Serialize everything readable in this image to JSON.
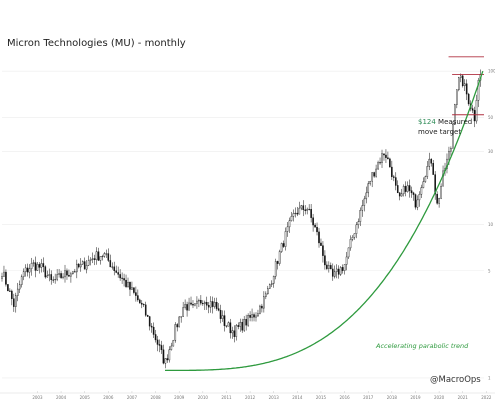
{
  "chart_data": {
    "type": "candlestick",
    "title": "Micron Technologies (MU) - monthly",
    "x_tick_labels": [
      "2003",
      "2004",
      "2005",
      "2006",
      "2007",
      "2008",
      "2009",
      "2010",
      "2011",
      "2012",
      "2013",
      "2014",
      "2015",
      "2016",
      "2017",
      "2018",
      "2019",
      "2020",
      "2021",
      "2022"
    ],
    "y_tick_labels": [
      "100",
      "50",
      "30",
      "10",
      "5",
      "1"
    ],
    "y_tick_values": [
      100,
      50,
      30,
      10,
      5,
      1
    ],
    "y_scale": "log",
    "ylim": [
      0.9,
      200
    ],
    "xlim": [
      2002.0,
      2022.4
    ],
    "annotations": {
      "target_price": "$124",
      "target_line1": " Measured",
      "target_line2": "move target",
      "trend_label": "Accelerating parabolic trend"
    },
    "watermark": "@MacroOps",
    "reference_lines": [
      {
        "name": "target",
        "value": 124,
        "color": "#b03040"
      },
      {
        "name": "range-top",
        "value": 95,
        "color": "#b03040"
      },
      {
        "name": "range-bottom",
        "value": 52,
        "color": "#b03040"
      }
    ],
    "colors": {
      "trend": "#2e9a3e",
      "target": "#b03040",
      "up": "#ffffff",
      "down": "#111111"
    },
    "series_anchors": [
      [
        2002.0,
        5.0
      ],
      [
        2002.5,
        3.0
      ],
      [
        2002.9,
        4.8
      ],
      [
        2003.3,
        5.5
      ],
      [
        2003.7,
        5.2
      ],
      [
        2004.1,
        4.2
      ],
      [
        2004.6,
        4.7
      ],
      [
        2005.0,
        5.0
      ],
      [
        2005.5,
        5.5
      ],
      [
        2005.9,
        6.2
      ],
      [
        2006.3,
        6.4
      ],
      [
        2006.7,
        5.3
      ],
      [
        2007.2,
        4.2
      ],
      [
        2007.6,
        3.5
      ],
      [
        2008.0,
        2.8
      ],
      [
        2008.4,
        2.0
      ],
      [
        2008.9,
        1.25
      ],
      [
        2009.3,
        2.0
      ],
      [
        2009.7,
        3.0
      ],
      [
        2010.1,
        2.8
      ],
      [
        2010.5,
        3.3
      ],
      [
        2011.0,
        3.0
      ],
      [
        2011.4,
        2.3
      ],
      [
        2011.8,
        2.0
      ],
      [
        2012.3,
        2.3
      ],
      [
        2012.8,
        2.7
      ],
      [
        2013.2,
        3.5
      ],
      [
        2013.6,
        5.5
      ],
      [
        2014.0,
        8.5
      ],
      [
        2014.4,
        12.0
      ],
      [
        2014.9,
        13.0
      ],
      [
        2015.3,
        9.0
      ],
      [
        2015.7,
        5.5
      ],
      [
        2016.0,
        4.5
      ],
      [
        2016.5,
        5.5
      ],
      [
        2016.9,
        9.0
      ],
      [
        2017.3,
        14.0
      ],
      [
        2017.6,
        20.0
      ],
      [
        2017.9,
        25.0
      ],
      [
        2018.2,
        30.0
      ],
      [
        2018.5,
        22.0
      ],
      [
        2018.8,
        14.0
      ],
      [
        2019.1,
        18.0
      ],
      [
        2019.5,
        14.0
      ],
      [
        2019.9,
        22.0
      ],
      [
        2020.2,
        27.0
      ],
      [
        2020.4,
        13.0
      ],
      [
        2020.7,
        22.0
      ],
      [
        2021.0,
        32.0
      ],
      [
        2021.2,
        75.0
      ],
      [
        2021.35,
        88.0
      ],
      [
        2021.5,
        85.0
      ],
      [
        2021.65,
        72.0
      ],
      [
        2021.8,
        62.0
      ],
      [
        2022.0,
        50.0
      ],
      [
        2022.15,
        90.0
      ],
      [
        2022.3,
        95.0
      ]
    ]
  }
}
